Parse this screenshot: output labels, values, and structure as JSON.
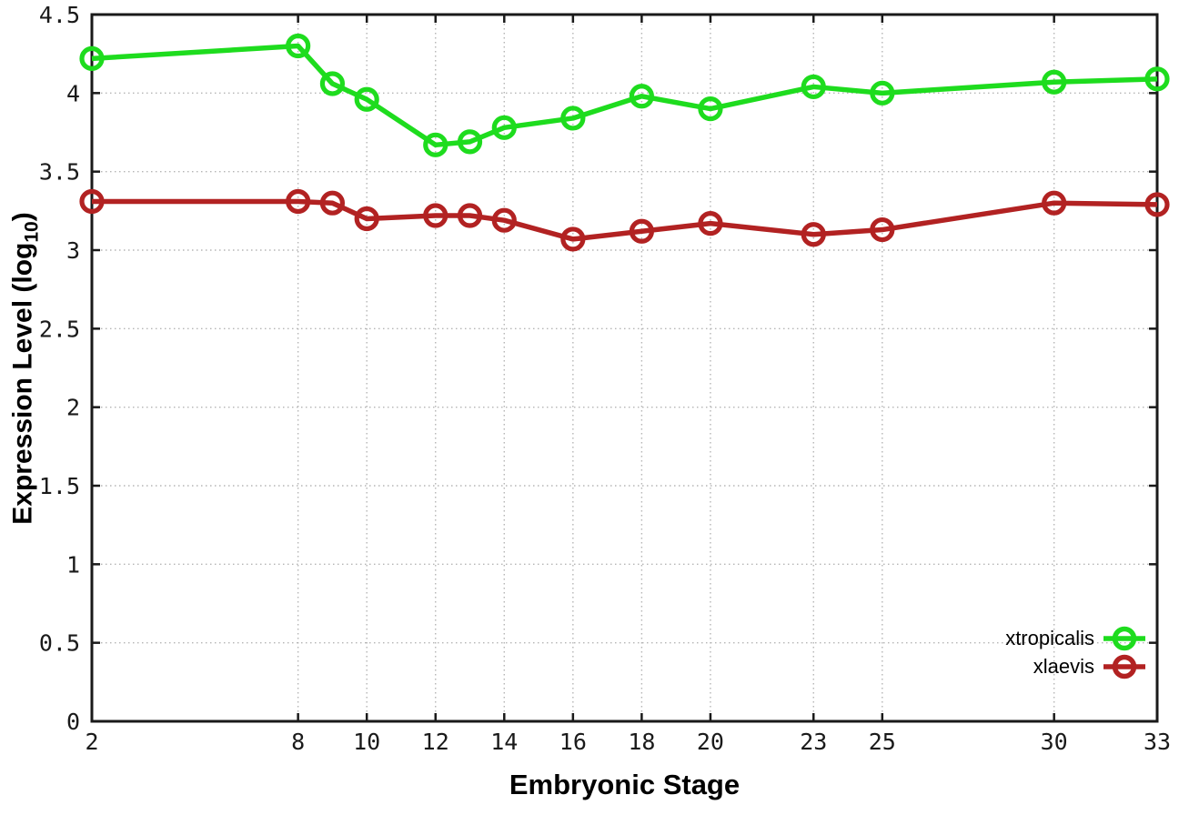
{
  "figure": {
    "xlabel": "Embryonic Stage",
    "ylabel_rich": {
      "prefix": "Expression Level (log",
      "sub": "10",
      "suffix": ")"
    }
  },
  "chart_data": {
    "type": "line",
    "title": "",
    "xlabel": "Embryonic Stage",
    "ylabel": "Expression Level (log10)",
    "x": [
      2,
      8,
      9,
      10,
      12,
      13,
      14,
      16,
      18,
      20,
      23,
      25,
      30,
      33
    ],
    "series": [
      {
        "name": "xtropicalis",
        "color": "#1edc1e",
        "values": [
          4.22,
          4.3,
          4.06,
          3.96,
          3.67,
          3.69,
          3.78,
          3.84,
          3.98,
          3.9,
          4.04,
          4.0,
          4.07,
          4.09
        ]
      },
      {
        "name": "xlaevis",
        "color": "#b22222",
        "values": [
          3.31,
          3.31,
          3.3,
          3.2,
          3.22,
          3.22,
          3.19,
          3.07,
          3.12,
          3.17,
          3.1,
          3.13,
          3.3,
          3.29
        ]
      }
    ],
    "xlim": [
      2,
      33
    ],
    "ylim": [
      0,
      4.5
    ],
    "xticks": [
      2,
      8,
      10,
      12,
      14,
      16,
      18,
      20,
      23,
      25,
      30,
      33
    ],
    "yticks": [
      0,
      0.5,
      1,
      1.5,
      2,
      2.5,
      3,
      3.5,
      4,
      4.5
    ],
    "grid": "dotted",
    "grid_color": "#b5b5b5",
    "axis_color": "#1a1a1a",
    "legend_position": "inside-bottom-right",
    "marker": "open-circle",
    "line_width": 5.5,
    "marker_radius": 11
  }
}
